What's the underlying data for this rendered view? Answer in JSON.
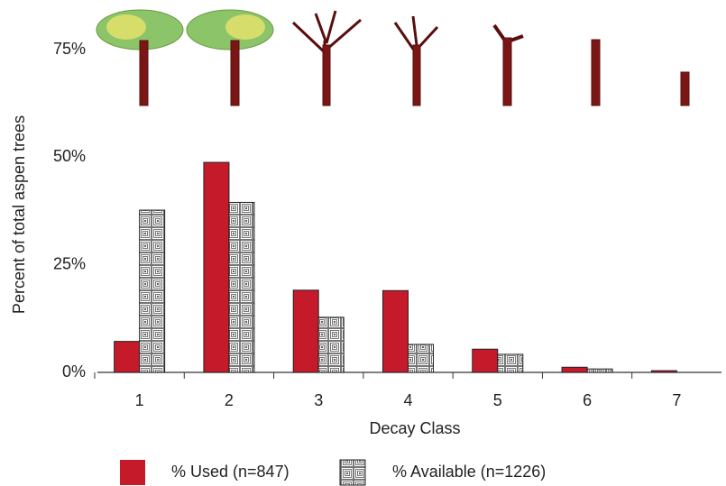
{
  "chart_data": {
    "type": "bar",
    "x_label": "Decay Class",
    "y_label": "Percent of total aspen trees",
    "categories": [
      "1",
      "2",
      "3",
      "4",
      "5",
      "6",
      "7"
    ],
    "series": [
      {
        "name": "% Used (n=847)",
        "color": "#c41a2a",
        "values": [
          7.2,
          48.8,
          19.1,
          19.0,
          5.4,
          1.2,
          0.4
        ]
      },
      {
        "name": "% Available (n=1226)",
        "color": "#555555",
        "values": [
          37.7,
          39.5,
          12.8,
          6.5,
          4.2,
          0.8,
          0
        ]
      }
    ],
    "ylim": [
      0,
      75
    ],
    "yticks": [
      {
        "value": 0,
        "label": "0%"
      },
      {
        "value": 25,
        "label": "25%"
      },
      {
        "value": 50,
        "label": "50%"
      },
      {
        "value": 75,
        "label": "75%"
      }
    ],
    "grid": false
  }
}
